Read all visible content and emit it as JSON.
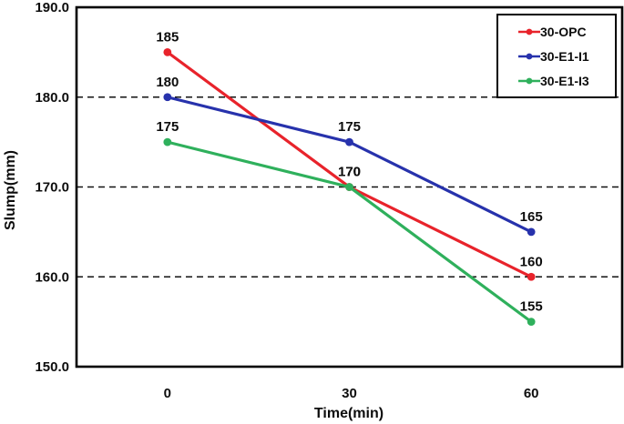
{
  "figure": {
    "background": "#ffffff"
  },
  "chart_data": {
    "type": "line",
    "title": "",
    "xlabel": "Time(min)",
    "ylabel": "Slump(mm)",
    "categories": [
      "0",
      "30",
      "60"
    ],
    "series": [
      {
        "name": "30-OPC",
        "color": "#e8232b",
        "values": [
          185,
          170,
          160
        ]
      },
      {
        "name": "30-E1-I1",
        "color": "#2732ac",
        "values": [
          180,
          175,
          165
        ]
      },
      {
        "name": "30-E1-I3",
        "color": "#2fb05c",
        "values": [
          175,
          170,
          155
        ]
      }
    ],
    "ylim": [
      150,
      190
    ],
    "yticks": [
      190,
      180,
      170,
      160,
      150
    ],
    "ytick_labels": [
      "190.0",
      "180.0",
      "170.0",
      "160.0",
      "150.0"
    ],
    "gridline_values": [
      180,
      170,
      160
    ],
    "grid_style": "dashed",
    "legend_position": "top-right",
    "legend_entries": [
      "30-OPC",
      "30-E1-I1",
      "30-E1-I3"
    ],
    "data_labels_shown": true,
    "axis_color": "#000000",
    "text_color": "#0d0d0d"
  }
}
